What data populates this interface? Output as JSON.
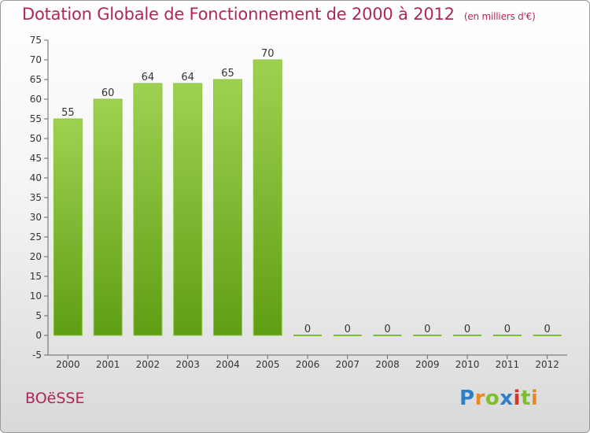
{
  "chart_data": {
    "type": "bar",
    "title": "Dotation Globale de Fonctionnement de 2000 à 2012",
    "unit": "(en milliers d'€)",
    "categories": [
      "2000",
      "2001",
      "2002",
      "2003",
      "2004",
      "2005",
      "2006",
      "2007",
      "2008",
      "2009",
      "2010",
      "2011",
      "2012"
    ],
    "values": [
      55,
      60,
      64,
      64,
      65,
      70,
      0,
      0,
      0,
      0,
      0,
      0,
      0
    ],
    "y_ticks": [
      -5,
      0,
      5,
      10,
      15,
      20,
      25,
      30,
      35,
      40,
      45,
      50,
      55,
      60,
      65,
      70,
      75
    ],
    "ylim": [
      -5,
      75
    ],
    "grid": false,
    "bar_color": "#7fbd2e",
    "bar_color_dark": "#5f9e14"
  },
  "commune": "BOëSSE",
  "logo": {
    "letters": [
      "P",
      "r",
      "o",
      "x",
      "i",
      "t",
      "i"
    ]
  }
}
